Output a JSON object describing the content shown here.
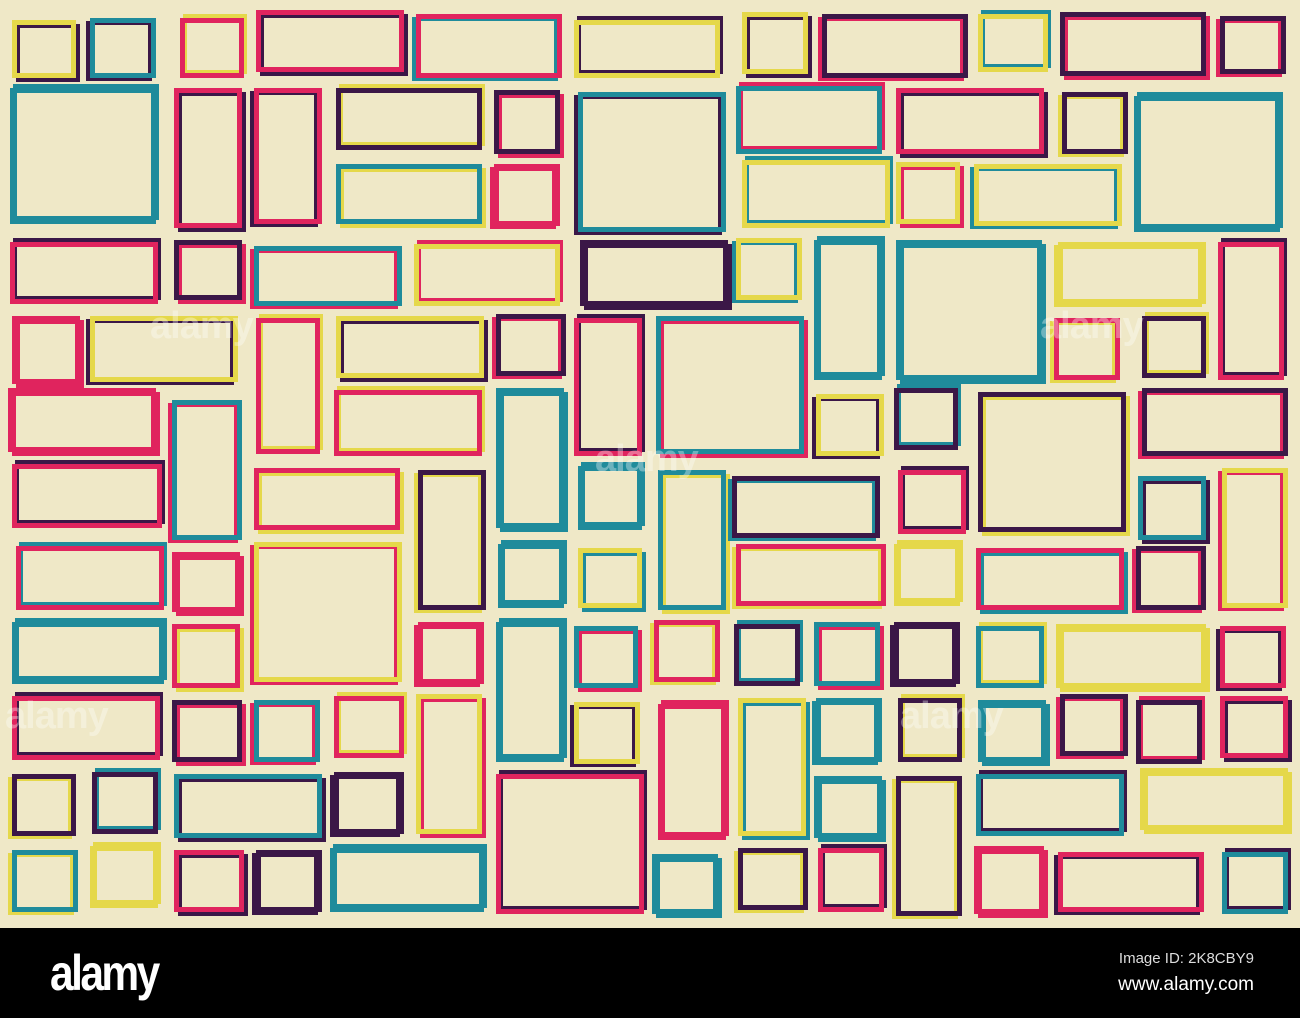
{
  "colors": {
    "background": "#efe8c7",
    "teal": "#1f8b9b",
    "pink": "#e0245e",
    "yellow": "#e5d84a",
    "purple": "#3b1747",
    "footer": "#000000"
  },
  "watermark": {
    "text": "alamy"
  },
  "footer": {
    "logo": "alamy",
    "image_id": "Image ID: 2K8CBY9",
    "site": "www.alamy.com"
  }
}
